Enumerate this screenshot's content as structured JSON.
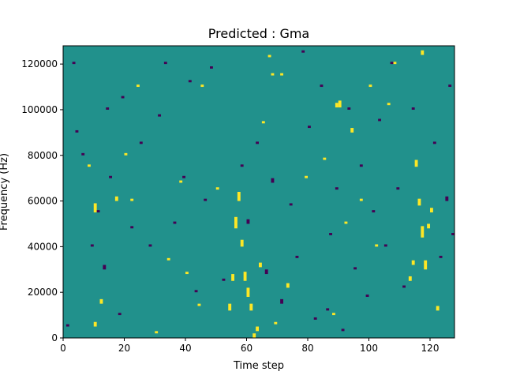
{
  "chart_data": {
    "type": "heatmap",
    "title": "Predicted : Gma",
    "xlabel": "Time step",
    "ylabel": "Frequency (Hz)",
    "xlim": [
      0,
      128
    ],
    "ylim": [
      0,
      128000
    ],
    "x_ticks": [
      0,
      20,
      40,
      60,
      80,
      100,
      120
    ],
    "y_ticks": [
      0,
      20000,
      40000,
      60000,
      80000,
      100000,
      120000
    ],
    "x_tick_labels": [
      "0",
      "20",
      "40",
      "60",
      "80",
      "100",
      "120"
    ],
    "y_tick_labels": [
      "0",
      "20000",
      "40000",
      "60000",
      "80000",
      "100000",
      "120000"
    ],
    "n_time_steps": 128,
    "n_freq_bins": 128,
    "colormap": "viridis",
    "levels": {
      "low": -1,
      "mid": 0,
      "high": 1
    },
    "colors": {
      "low": "#440154",
      "mid": "#21918c",
      "high": "#fde725"
    },
    "background_level": 0,
    "cells": [
      [
        54,
        3,
        12,
        1
      ],
      [
        55,
        3,
        25,
        1
      ],
      [
        56,
        5,
        48,
        1
      ],
      [
        57,
        4,
        60,
        1
      ],
      [
        58,
        3,
        40,
        1
      ],
      [
        59,
        4,
        25,
        1
      ],
      [
        60,
        4,
        18,
        1
      ],
      [
        61,
        3,
        12,
        1
      ],
      [
        62,
        2,
        0,
        1
      ],
      [
        63,
        2,
        3,
        1
      ],
      [
        116,
        3,
        58,
        1
      ],
      [
        117,
        5,
        44,
        1
      ],
      [
        118,
        4,
        30,
        1
      ],
      [
        119,
        2,
        48,
        1
      ],
      [
        120,
        2,
        55,
        1
      ],
      [
        113,
        2,
        25,
        1
      ],
      [
        114,
        2,
        32,
        1
      ],
      [
        115,
        3,
        75,
        1
      ],
      [
        12,
        2,
        15,
        1
      ],
      [
        10,
        4,
        55,
        1
      ],
      [
        10,
        2,
        5,
        1
      ],
      [
        17,
        2,
        60,
        1
      ],
      [
        89,
        2,
        101,
        1
      ],
      [
        90,
        3,
        101,
        1
      ],
      [
        71,
        1,
        115,
        1
      ],
      [
        68,
        1,
        115,
        1
      ],
      [
        73,
        2,
        22,
        1
      ],
      [
        88,
        1,
        10,
        1
      ],
      [
        94,
        2,
        90,
        1
      ],
      [
        85,
        1,
        78,
        1
      ],
      [
        20,
        1,
        80,
        1
      ],
      [
        30,
        1,
        2,
        1
      ],
      [
        44,
        1,
        14,
        1
      ],
      [
        50,
        1,
        65,
        1
      ],
      [
        45,
        1,
        110,
        1
      ],
      [
        24,
        1,
        110,
        1
      ],
      [
        38,
        1,
        68,
        1
      ],
      [
        67,
        1,
        123,
        1
      ],
      [
        108,
        1,
        120,
        1
      ],
      [
        100,
        1,
        110,
        1
      ],
      [
        69,
        1,
        6,
        1
      ],
      [
        79,
        1,
        70,
        1
      ],
      [
        102,
        1,
        40,
        1
      ],
      [
        122,
        2,
        12,
        1
      ],
      [
        40,
        1,
        28,
        1
      ],
      [
        65,
        1,
        94,
        1
      ],
      [
        97,
        1,
        60,
        1
      ],
      [
        34,
        1,
        34,
        1
      ],
      [
        106,
        1,
        102,
        1
      ],
      [
        8,
        1,
        75,
        1
      ],
      [
        64,
        2,
        31,
        1
      ],
      [
        22,
        1,
        60,
        1
      ],
      [
        92,
        1,
        50,
        1
      ],
      [
        117,
        2,
        124,
        1
      ],
      [
        1,
        1,
        5,
        -1
      ],
      [
        3,
        1,
        120,
        -1
      ],
      [
        4,
        1,
        90,
        -1
      ],
      [
        6,
        1,
        80,
        -1
      ],
      [
        9,
        1,
        40,
        -1
      ],
      [
        11,
        1,
        55,
        -1
      ],
      [
        13,
        2,
        30,
        -1
      ],
      [
        14,
        1,
        100,
        -1
      ],
      [
        15,
        1,
        70,
        -1
      ],
      [
        18,
        1,
        10,
        -1
      ],
      [
        19,
        1,
        105,
        -1
      ],
      [
        22,
        1,
        48,
        -1
      ],
      [
        25,
        1,
        85,
        -1
      ],
      [
        28,
        1,
        40,
        -1
      ],
      [
        31,
        1,
        97,
        -1
      ],
      [
        33,
        1,
        120,
        -1
      ],
      [
        36,
        1,
        50,
        -1
      ],
      [
        39,
        1,
        70,
        -1
      ],
      [
        41,
        1,
        112,
        -1
      ],
      [
        43,
        1,
        20,
        -1
      ],
      [
        46,
        1,
        60,
        -1
      ],
      [
        48,
        1,
        118,
        -1
      ],
      [
        52,
        1,
        25,
        -1
      ],
      [
        58,
        1,
        75,
        -1
      ],
      [
        60,
        2,
        50,
        -1
      ],
      [
        63,
        1,
        85,
        -1
      ],
      [
        66,
        2,
        28,
        -1
      ],
      [
        68,
        2,
        68,
        -1
      ],
      [
        71,
        2,
        15,
        -1
      ],
      [
        74,
        1,
        58,
        -1
      ],
      [
        76,
        1,
        35,
        -1
      ],
      [
        78,
        1,
        125,
        -1
      ],
      [
        80,
        1,
        92,
        -1
      ],
      [
        82,
        1,
        8,
        -1
      ],
      [
        84,
        1,
        110,
        -1
      ],
      [
        87,
        1,
        45,
        -1
      ],
      [
        89,
        1,
        65,
        -1
      ],
      [
        91,
        1,
        3,
        -1
      ],
      [
        93,
        1,
        100,
        -1
      ],
      [
        95,
        1,
        30,
        -1
      ],
      [
        97,
        1,
        75,
        -1
      ],
      [
        99,
        1,
        18,
        -1
      ],
      [
        101,
        1,
        55,
        -1
      ],
      [
        103,
        1,
        95,
        -1
      ],
      [
        105,
        1,
        40,
        -1
      ],
      [
        107,
        1,
        120,
        -1
      ],
      [
        109,
        1,
        65,
        -1
      ],
      [
        111,
        1,
        22,
        -1
      ],
      [
        114,
        1,
        100,
        -1
      ],
      [
        121,
        1,
        85,
        -1
      ],
      [
        123,
        1,
        35,
        -1
      ],
      [
        125,
        2,
        60,
        -1
      ],
      [
        126,
        1,
        110,
        -1
      ],
      [
        127,
        1,
        45,
        -1
      ],
      [
        86,
        1,
        12,
        -1
      ]
    ]
  }
}
